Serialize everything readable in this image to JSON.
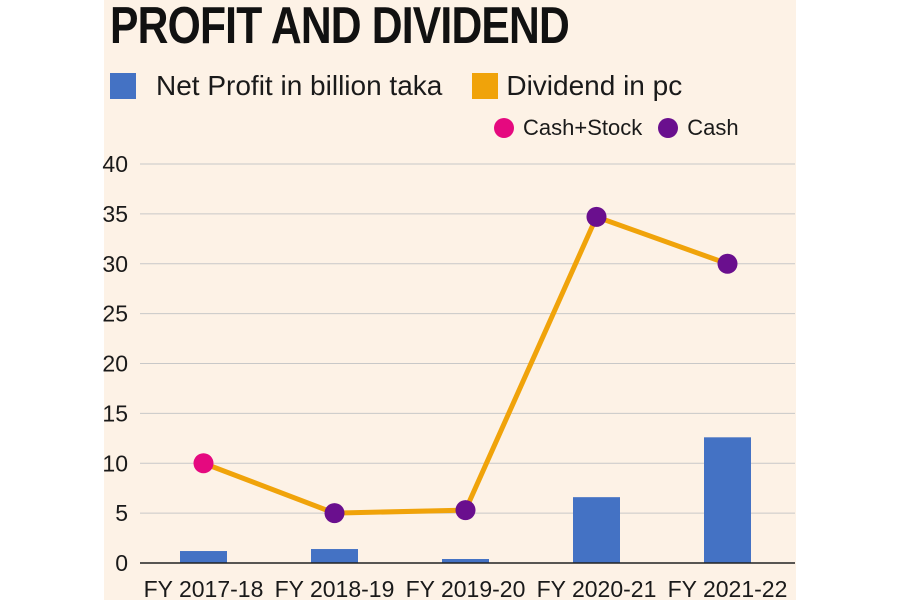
{
  "chart_data": {
    "type": "bar+line",
    "title": "PROFIT AND DIVIDEND",
    "categories": [
      "FY 2017-18",
      "FY 2018-19",
      "FY 2019-20",
      "FY 2020-21",
      "FY 2021-22"
    ],
    "series": [
      {
        "name": "Net Profit in billion taka",
        "type": "bar",
        "color": "#4472c4",
        "values": [
          1.2,
          1.4,
          0.4,
          6.6,
          12.6
        ]
      },
      {
        "name": "Dividend in pc",
        "type": "line",
        "color": "#f0a30a",
        "values": [
          10,
          5,
          5.3,
          34.7,
          30
        ],
        "marker_type": [
          "Cash+Stock",
          "Cash",
          "Cash",
          "Cash",
          "Cash"
        ]
      }
    ],
    "marker_legend": [
      {
        "name": "Cash+Stock",
        "color": "#e5097f"
      },
      {
        "name": "Cash",
        "color": "#6a0f8e"
      }
    ],
    "ylim": [
      0,
      40
    ],
    "yticks": [
      "40",
      "35",
      "30",
      "25",
      "20",
      "15",
      "10",
      "5",
      "0"
    ],
    "ytick_values": [
      40,
      35,
      30,
      25,
      20,
      15,
      10,
      5,
      0
    ],
    "grid": true,
    "xlabel": "",
    "ylabel": ""
  }
}
